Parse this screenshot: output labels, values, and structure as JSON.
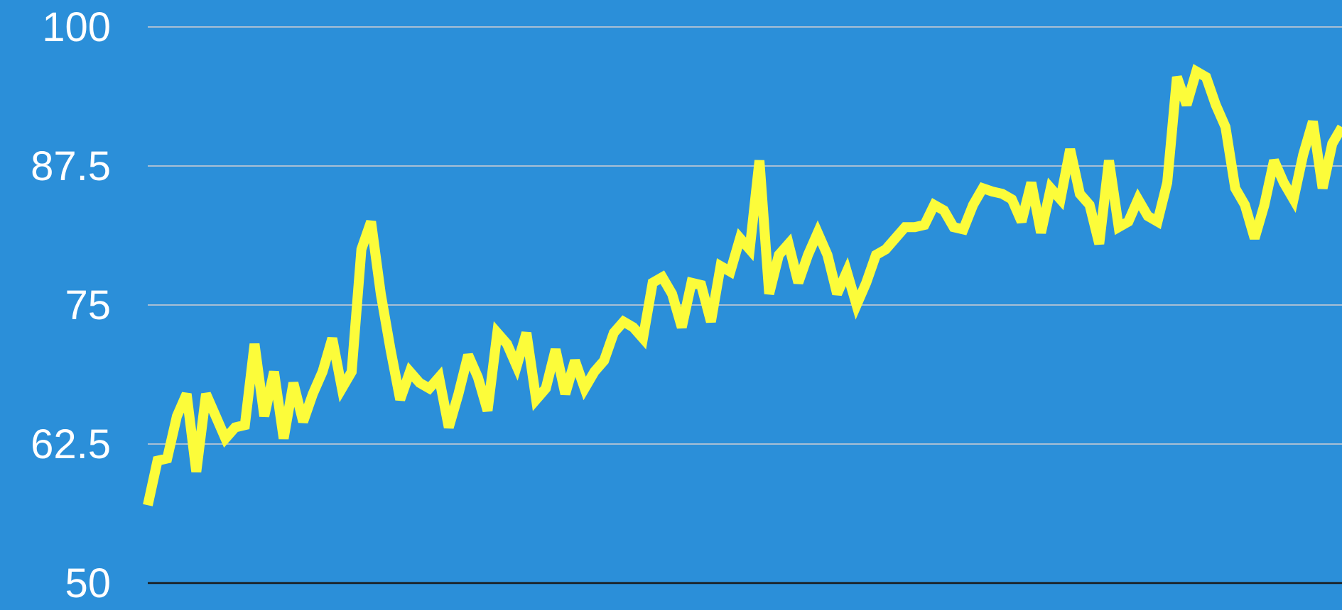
{
  "colors": {
    "background": "#2b8fd9",
    "grid": "#a8bfd4",
    "baseline": "#1a1a1a",
    "tick_text": "#ffffff",
    "series": "#fcfc3a"
  },
  "chart_data": {
    "type": "line",
    "title": "",
    "xlabel": "",
    "ylabel": "",
    "ylim": [
      50,
      100
    ],
    "yticks": [
      "50",
      "62.5",
      "75",
      "87.5",
      "100"
    ],
    "grid": true,
    "legend": "none",
    "series": [
      {
        "values": [
          57.0,
          61.0,
          61.2,
          65.0,
          67.0,
          60.0,
          67.0,
          65.0,
          63.0,
          64.0,
          64.2,
          71.5,
          65.0,
          69.0,
          63.0,
          68.0,
          64.5,
          67.0,
          69.0,
          72.0,
          67.5,
          69.0,
          80.0,
          82.5,
          76.0,
          71.0,
          66.5,
          69.0,
          68.0,
          67.5,
          68.5,
          64.0,
          67.0,
          70.5,
          68.5,
          65.5,
          72.5,
          71.5,
          69.5,
          72.5,
          66.5,
          67.5,
          71.0,
          67.0,
          70.0,
          67.5,
          69.0,
          70.0,
          72.5,
          73.5,
          73.0,
          72.0,
          77.0,
          77.5,
          76.0,
          73.0,
          77.0,
          76.8,
          73.5,
          78.5,
          78.0,
          81.0,
          80.0,
          88.0,
          76.0,
          79.5,
          80.5,
          77.0,
          79.5,
          81.5,
          79.5,
          76.0,
          78.0,
          75.0,
          77.0,
          79.5,
          80.0,
          81.0,
          82.0,
          82.0,
          82.2,
          84.0,
          83.5,
          82.0,
          81.8,
          84.0,
          85.5,
          85.2,
          85.0,
          84.5,
          82.5,
          86.0,
          81.5,
          85.5,
          84.5,
          89.0,
          85.0,
          84.0,
          80.5,
          88.0,
          82.0,
          82.5,
          84.5,
          83.0,
          82.5,
          86.0,
          95.5,
          93.0,
          96.0,
          95.5,
          93.0,
          91.0,
          85.5,
          84.0,
          81.0,
          84.0,
          88.0,
          86.0,
          84.5,
          88.5,
          91.5,
          85.5,
          89.5,
          91.0
        ]
      }
    ]
  }
}
